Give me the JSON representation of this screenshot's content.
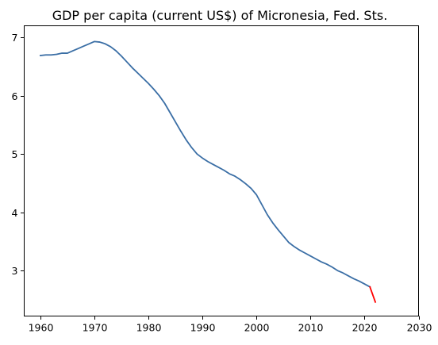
{
  "chart_data": {
    "type": "line",
    "title": "GDP per capita (current US$) of Micronesia, Fed. Sts.",
    "xlabel": "",
    "ylabel": "",
    "xlim": [
      1957,
      2030
    ],
    "ylim": [
      2.22,
      7.2
    ],
    "x_ticks": [
      1960,
      1970,
      1980,
      1990,
      2000,
      2010,
      2020,
      2030
    ],
    "y_ticks": [
      3,
      4,
      5,
      6,
      7
    ],
    "grid": false,
    "series": [
      {
        "color": "#3a6ea5",
        "x": [
          1960,
          1961,
          1962,
          1963,
          1964,
          1965,
          1966,
          1967,
          1968,
          1969,
          1970,
          1971,
          1972,
          1973,
          1974,
          1975,
          1976,
          1977,
          1978,
          1979,
          1980,
          1981,
          1982,
          1983,
          1984,
          1985,
          1986,
          1987,
          1988,
          1989,
          1990,
          1991,
          1992,
          1993,
          1994,
          1995,
          1996,
          1997,
          1998,
          1999,
          2000,
          2001,
          2002,
          2003,
          2004,
          2005,
          2006,
          2007,
          2008,
          2009,
          2010,
          2011,
          2012,
          2013,
          2014,
          2015,
          2016,
          2017,
          2018,
          2019,
          2020,
          2021
        ],
        "values": [
          6.69,
          6.7,
          6.7,
          6.71,
          6.73,
          6.73,
          6.77,
          6.81,
          6.85,
          6.89,
          6.93,
          6.92,
          6.89,
          6.84,
          6.77,
          6.68,
          6.58,
          6.48,
          6.39,
          6.3,
          6.21,
          6.11,
          6.0,
          5.87,
          5.71,
          5.55,
          5.39,
          5.24,
          5.11,
          5.0,
          4.93,
          4.87,
          4.82,
          4.77,
          4.72,
          4.66,
          4.62,
          4.56,
          4.49,
          4.41,
          4.3,
          4.13,
          3.96,
          3.82,
          3.7,
          3.59,
          3.48,
          3.41,
          3.35,
          3.3,
          3.25,
          3.2,
          3.15,
          3.11,
          3.06,
          3.0,
          2.96,
          2.91,
          2.86,
          2.82,
          2.77,
          2.72
        ]
      },
      {
        "color": "#ff0000",
        "x": [
          2021,
          2022
        ],
        "values": [
          2.72,
          2.46
        ]
      }
    ]
  }
}
